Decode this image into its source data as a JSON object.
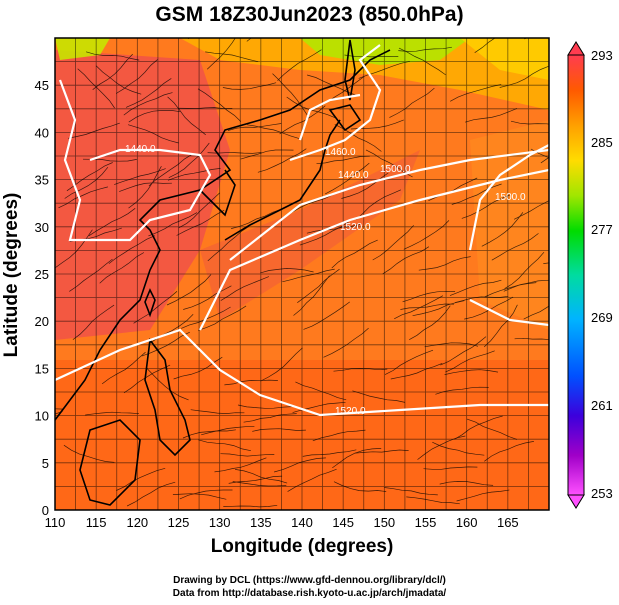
{
  "title": "GSM 18Z30Jun2023 (850.0hPa)",
  "xlabel": "Longitude (degrees)",
  "ylabel": "Latitude  (degrees)",
  "credits": {
    "line1": "Drawing by DCL (https://www.gfd-dennou.org/library/dcl/)",
    "line2": "Data from http://database.rish.kyoto-u.ac.jp/arch/jmadata/"
  },
  "colorbar": {
    "ticks": [
      "293",
      "285",
      "277",
      "269",
      "261",
      "253"
    ],
    "range": [
      253,
      293
    ],
    "colors": [
      "#ff50ff",
      "#a000c8",
      "#3c00dc",
      "#0050ff",
      "#00b4ff",
      "#00dca0",
      "#00dc00",
      "#a0e600",
      "#ffdc00",
      "#ffa000",
      "#ff5a00",
      "#ff3c50"
    ]
  },
  "chart_data": {
    "type": "heatmap",
    "variable": "temperature with streamlines and geopotential height contours",
    "x_ticks": [
      110,
      115,
      120,
      125,
      130,
      135,
      140,
      145,
      150,
      155,
      160,
      165
    ],
    "y_ticks": [
      0,
      5,
      10,
      15,
      20,
      25,
      30,
      35,
      40,
      45
    ],
    "xlim": [
      110,
      170
    ],
    "ylim": [
      0,
      50
    ],
    "contour_labels": [
      "1440.0",
      "1460.0",
      "1440.0",
      "1500.0",
      "1520.0",
      "1500.0",
      "1520.0"
    ]
  }
}
